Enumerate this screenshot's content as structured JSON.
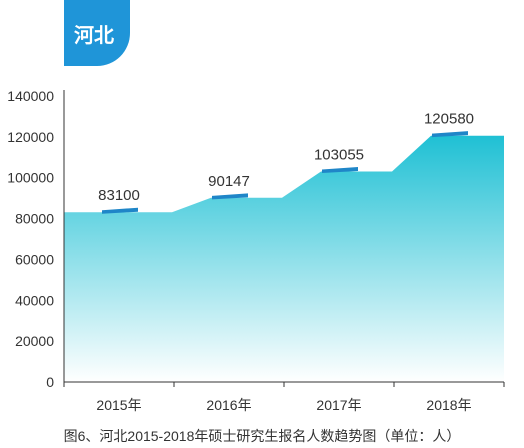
{
  "region_label": "河北",
  "caption": "图6、河北2015-2018年硕士研究生报名人数趋势图（单位：人）",
  "colors": {
    "badge": "#1f95d8",
    "area_top": "#1fc0d4",
    "area_bottom": "#ffffff",
    "marker": "#1f86c8",
    "axis": "#333333",
    "text": "#333333"
  },
  "chart_data": {
    "type": "area",
    "title": "",
    "xlabel": "",
    "ylabel": "",
    "categories": [
      "2015年",
      "2016年",
      "2017年",
      "2018年"
    ],
    "values": [
      83100,
      90147,
      103055,
      120580
    ],
    "value_labels": [
      "83100",
      "90147",
      "103055",
      "120580"
    ],
    "yticks": [
      "0",
      "20000",
      "40000",
      "60000",
      "80000",
      "100000",
      "120000",
      "140000"
    ],
    "ylim": [
      0,
      140000
    ],
    "grid": false,
    "legend": "none"
  }
}
